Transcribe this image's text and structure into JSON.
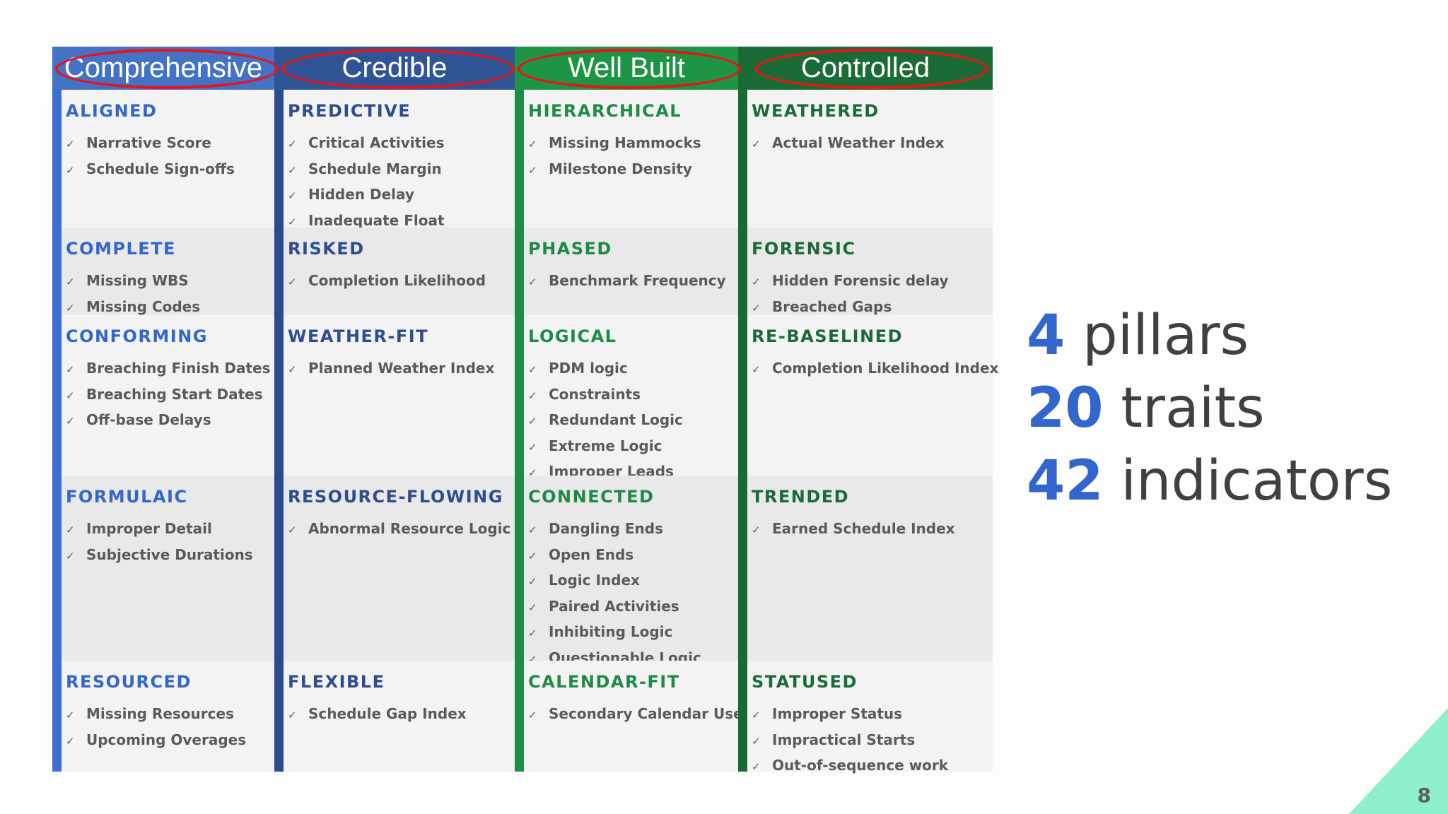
{
  "pillars": [
    {
      "name": "Comprehensive",
      "traits": [
        {
          "title": "ALIGNED",
          "indicators": [
            "Narrative Score",
            "Schedule Sign-offs"
          ]
        },
        {
          "title": "COMPLETE",
          "indicators": [
            "Missing WBS",
            "Missing Codes"
          ]
        },
        {
          "title": "CONFORMING",
          "indicators": [
            "Breaching Finish Dates",
            "Breaching Start Dates",
            "Off-base Delays"
          ]
        },
        {
          "title": "FORMULAIC",
          "indicators": [
            "Improper Detail",
            "Subjective Durations"
          ]
        },
        {
          "title": "RESOURCED",
          "indicators": [
            "Missing Resources",
            "Upcoming Overages"
          ]
        }
      ]
    },
    {
      "name": "Credible",
      "traits": [
        {
          "title": "PREDICTIVE",
          "indicators": [
            "Critical Activities",
            "Schedule Margin",
            "Hidden Delay",
            "Inadequate Float"
          ]
        },
        {
          "title": "RISKED",
          "indicators": [
            "Completion Likelihood"
          ]
        },
        {
          "title": "WEATHER-FIT",
          "indicators": [
            "Planned Weather Index"
          ]
        },
        {
          "title": "RESOURCE-FLOWING",
          "indicators": [
            "Abnormal Resource Logic"
          ]
        },
        {
          "title": "FLEXIBLE",
          "indicators": [
            "Schedule Gap Index"
          ]
        }
      ]
    },
    {
      "name": "Well Built",
      "traits": [
        {
          "title": "HIERARCHICAL",
          "indicators": [
            "Missing Hammocks",
            "Milestone Density"
          ]
        },
        {
          "title": "PHASED",
          "indicators": [
            "Benchmark Frequency"
          ]
        },
        {
          "title": "LOGICAL",
          "indicators": [
            "PDM logic",
            "Constraints",
            "Redundant Logic",
            "Extreme Logic",
            "Improper Leads"
          ]
        },
        {
          "title": "CONNECTED",
          "indicators": [
            "Dangling Ends",
            "Open Ends",
            "Logic Index",
            "Paired Activities",
            "Inhibiting Logic",
            "Questionable Logic"
          ]
        },
        {
          "title": "CALENDAR-FIT",
          "indicators": [
            "Secondary Calendar Use"
          ]
        }
      ]
    },
    {
      "name": "Controlled",
      "traits": [
        {
          "title": "WEATHERED",
          "indicators": [
            "Actual Weather Index"
          ]
        },
        {
          "title": "FORENSIC",
          "indicators": [
            "Hidden Forensic delay",
            "Breached Gaps"
          ]
        },
        {
          "title": "RE-BASELINED",
          "indicators": [
            "Completion Likelihood Index"
          ]
        },
        {
          "title": "TRENDED",
          "indicators": [
            "Earned Schedule Index"
          ]
        },
        {
          "title": "STATUSED",
          "indicators": [
            "Improper Status",
            "Impractical Starts",
            "Out-of-sequence work"
          ]
        }
      ]
    }
  ],
  "summary": {
    "pillars_num": "4",
    "pillars_label": "pillars",
    "traits_num": "20",
    "traits_label": "traits",
    "indicators_num": "42",
    "indicators_label": "indicators"
  },
  "check_glyph": "✓",
  "page_number": "8",
  "colors": {
    "comprehensive_header": "#4472c4",
    "credible_header": "#2f5597",
    "well_built_header": "#1e9445",
    "controlled_header": "#1b6b36",
    "highlight_circle": "#e8141b",
    "summary_number": "#3366cc",
    "corner_triangle": "#8ef0c8"
  }
}
